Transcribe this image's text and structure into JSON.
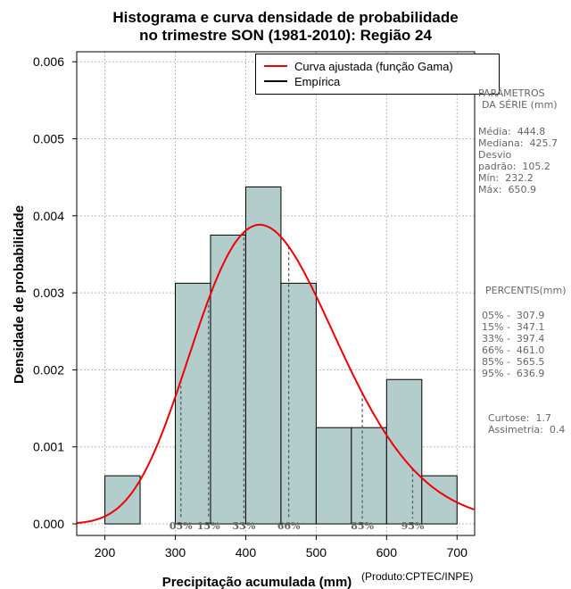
{
  "title": {
    "line1": "Histograma e curva densidade de probabilidade",
    "line2": "no trimestre SON (1981-2010): Região 24"
  },
  "credit": "(Produto:CPTEC/INPE)",
  "legend": {
    "fitted": "Curva ajustada (função Gama)",
    "empirical": "Empírica"
  },
  "parameters": {
    "heading1": "PARÂMETROS",
    "heading2": "DA SÉRIE (mm)",
    "items": [
      {
        "label": "Média:",
        "value": "444.8"
      },
      {
        "label": "Mediana:",
        "value": "425.7"
      },
      {
        "label": "Desvio",
        "value": ""
      },
      {
        "label": "padrão:",
        "value": "105.2"
      },
      {
        "label": "Mín:",
        "value": "232.2"
      },
      {
        "label": "Máx:",
        "value": "650.9"
      }
    ]
  },
  "percentiles": {
    "heading": "PERCENTIS(mm)",
    "items": [
      {
        "label": "05% -",
        "value": "307.9"
      },
      {
        "label": "15% -",
        "value": "347.1"
      },
      {
        "label": "33% -",
        "value": "397.4"
      },
      {
        "label": "66% -",
        "value": "461.0"
      },
      {
        "label": "85% -",
        "value": "565.5"
      },
      {
        "label": "95% -",
        "value": "636.9"
      }
    ],
    "curtose": {
      "label": "Curtose:",
      "value": "1.7"
    },
    "assimetria": {
      "label": "Assimetria:",
      "value": "0.4"
    }
  },
  "colors": {
    "bar_fill": "#b3cdcd",
    "bar_stroke": "#000000",
    "curve": "#ee0000",
    "grid": "#bbbbbb",
    "percentile_line": "#555555",
    "percentile_label": "#666666"
  },
  "chart_data": {
    "type": "bar",
    "title": "Histograma e curva densidade de probabilidade no trimestre SON (1981-2010): Região 24",
    "xlabel": "Precipitação acumulada (mm)",
    "ylabel": "Densidade de probabilidade",
    "xlim": [
      160,
      725
    ],
    "ylim": [
      -0.00015,
      0.00613
    ],
    "xticks": [
      200,
      300,
      400,
      500,
      600,
      700
    ],
    "xtick_labels": [
      "200",
      "300",
      "400",
      "500",
      "600",
      "700"
    ],
    "yticks": [
      0,
      0.001,
      0.002,
      0.003,
      0.004,
      0.005,
      0.006
    ],
    "ytick_labels": [
      "0.000",
      "0.001",
      "0.002",
      "0.003",
      "0.004",
      "0.005",
      "0.006"
    ],
    "bins": [
      {
        "from": 200,
        "to": 250,
        "density": 0.000625
      },
      {
        "from": 300,
        "to": 350,
        "density": 0.003125
      },
      {
        "from": 350,
        "to": 400,
        "density": 0.00375
      },
      {
        "from": 400,
        "to": 450,
        "density": 0.004375
      },
      {
        "from": 450,
        "to": 500,
        "density": 0.003125
      },
      {
        "from": 500,
        "to": 550,
        "density": 0.00125
      },
      {
        "from": 550,
        "to": 600,
        "density": 0.00125
      },
      {
        "from": 600,
        "to": 650,
        "density": 0.001875
      },
      {
        "from": 650,
        "to": 700,
        "density": 0.000625
      }
    ],
    "fitted_curve": {
      "name": "Curva ajustada (função Gama)",
      "distribution": "gamma",
      "mean": 444.8,
      "sd": 105.2
    },
    "percentile_markers": [
      {
        "label": "05%",
        "x": 307.9
      },
      {
        "label": "15%",
        "x": 347.1
      },
      {
        "label": "33%",
        "x": 397.4
      },
      {
        "label": "66%",
        "x": 461.0
      },
      {
        "label": "85%",
        "x": 565.5
      },
      {
        "label": "95%",
        "x": 636.9
      }
    ],
    "grid": true,
    "legend_position": "top-right"
  }
}
